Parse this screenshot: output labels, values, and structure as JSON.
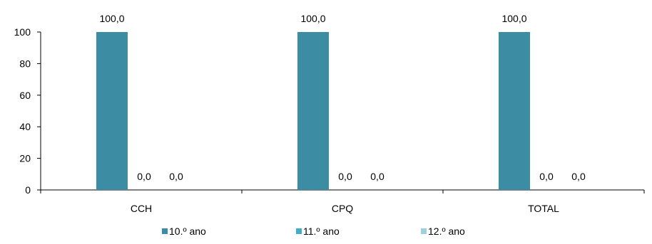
{
  "chart_data": {
    "type": "bar",
    "categories": [
      "CCH",
      "CPQ",
      "TOTAL"
    ],
    "series": [
      {
        "name": "10.º ano",
        "values": [
          100.0,
          100.0,
          100.0
        ],
        "color": "#3C8CA3"
      },
      {
        "name": "11.º ano",
        "values": [
          0.0,
          0.0,
          0.0
        ],
        "color": "#42AEC4"
      },
      {
        "name": "12.º ano",
        "values": [
          0.0,
          0.0,
          0.0
        ],
        "color": "#9FCFDA"
      }
    ],
    "data_labels": [
      [
        "100,0",
        "100,0",
        "100,0"
      ],
      [
        "0,0",
        "0,0",
        "0,0"
      ],
      [
        "0,0",
        "0,0",
        "0,0"
      ]
    ],
    "y_ticks": [
      "0",
      "20",
      "40",
      "60",
      "80",
      "100"
    ],
    "ylim": [
      0,
      100
    ],
    "grid": false,
    "legend_position": "bottom",
    "title": "",
    "xlabel": "",
    "ylabel": ""
  }
}
